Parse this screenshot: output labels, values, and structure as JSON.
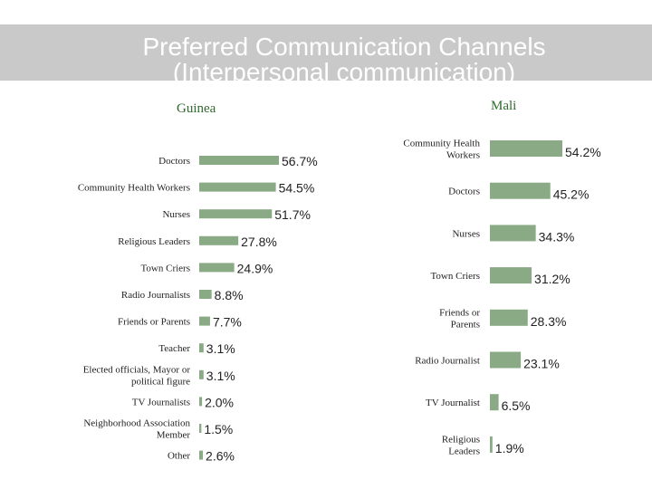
{
  "title": {
    "line1": "Preferred Communication Channels",
    "line2": "(Interpersonal communication)"
  },
  "chart_data": [
    {
      "type": "bar",
      "orientation": "horizontal",
      "title": "Guinea",
      "categories": [
        "Doctors",
        "Community Health Workers",
        "Nurses",
        "Religious Leaders",
        "Town Criers",
        "Radio Journalists",
        "Friends or Parents",
        "Teacher",
        "Elected officials, Mayor or political figure",
        "TV Journalists",
        "Neighborhood Association Member",
        "Other"
      ],
      "values": [
        56.7,
        54.5,
        51.7,
        27.8,
        24.9,
        8.8,
        7.7,
        3.1,
        3.1,
        2.0,
        1.5,
        2.6
      ],
      "data_labels": [
        "56.7%",
        "54.5%",
        "51.7%",
        "27.8%",
        "24.9%",
        "8.8%",
        "7.7%",
        "3.1%",
        "3.1%",
        "2.0%",
        "1.5%",
        "2.6%"
      ],
      "color": "#8aaa86"
    },
    {
      "type": "bar",
      "orientation": "horizontal",
      "title": "Mali",
      "categories": [
        "Community Health Workers",
        "Doctors",
        "Nurses",
        "Town Criers",
        "Friends or Parents",
        "Radio Journalist",
        "TV Journalist",
        "Religious Leaders"
      ],
      "values": [
        54.2,
        45.2,
        34.3,
        31.2,
        28.3,
        23.1,
        6.5,
        1.9
      ],
      "data_labels": [
        "54.2%",
        "45.2%",
        "34.3%",
        "31.2%",
        "28.3%",
        "23.1%",
        "6.5%",
        "1.9%"
      ],
      "color": "#8aaa86"
    }
  ]
}
